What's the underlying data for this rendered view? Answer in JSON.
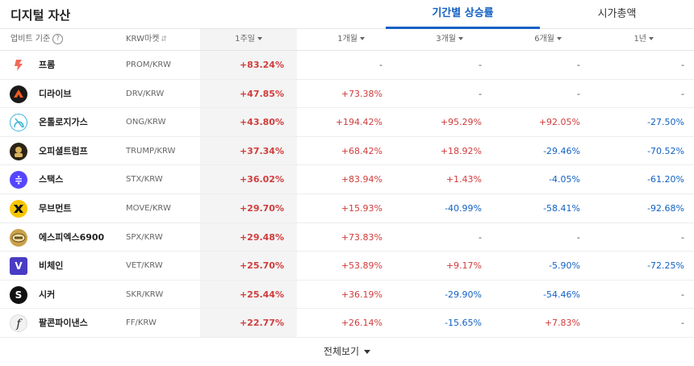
{
  "header": {
    "title": "디지털 자산",
    "tabs": [
      {
        "label": "기간별 상승률",
        "active": true
      },
      {
        "label": "시가총액",
        "active": false
      }
    ]
  },
  "columns": {
    "basis": "업비트 기준",
    "market": "KRW마켓",
    "week1": "1주일",
    "month1": "1개월",
    "month3": "3개월",
    "month6": "6개월",
    "year1": "1년"
  },
  "rows": [
    {
      "name": "프롬",
      "market": "PROM/KRW",
      "icon": "prom-icon",
      "w1": "+83.24%",
      "m1": "-",
      "m3": "-",
      "m6": "-",
      "y1": "-"
    },
    {
      "name": "디라이브",
      "market": "DRV/KRW",
      "icon": "drv-icon",
      "w1": "+47.85%",
      "m1": "+73.38%",
      "m3": "-",
      "m6": "-",
      "y1": "-"
    },
    {
      "name": "온톨로지가스",
      "market": "ONG/KRW",
      "icon": "ong-icon",
      "w1": "+43.80%",
      "m1": "+194.42%",
      "m3": "+95.29%",
      "m6": "+92.05%",
      "y1": "-27.50%"
    },
    {
      "name": "오피셜트럼프",
      "market": "TRUMP/KRW",
      "icon": "trump-icon",
      "w1": "+37.34%",
      "m1": "+68.42%",
      "m3": "+18.92%",
      "m6": "-29.46%",
      "y1": "-70.52%"
    },
    {
      "name": "스택스",
      "market": "STX/KRW",
      "icon": "stx-icon",
      "w1": "+36.02%",
      "m1": "+83.94%",
      "m3": "+1.43%",
      "m6": "-4.05%",
      "y1": "-61.20%"
    },
    {
      "name": "무브먼트",
      "market": "MOVE/KRW",
      "icon": "move-icon",
      "w1": "+29.70%",
      "m1": "+15.93%",
      "m3": "-40.99%",
      "m6": "-58.41%",
      "y1": "-92.68%"
    },
    {
      "name": "에스피엑스6900",
      "market": "SPX/KRW",
      "icon": "spx-icon",
      "w1": "+29.48%",
      "m1": "+73.83%",
      "m3": "-",
      "m6": "-",
      "y1": "-"
    },
    {
      "name": "비체인",
      "market": "VET/KRW",
      "icon": "vet-icon",
      "w1": "+25.70%",
      "m1": "+53.89%",
      "m3": "+9.17%",
      "m6": "-5.90%",
      "y1": "-72.25%"
    },
    {
      "name": "시커",
      "market": "SKR/KRW",
      "icon": "skr-icon",
      "w1": "+25.44%",
      "m1": "+36.19%",
      "m3": "-29.90%",
      "m6": "-54.46%",
      "y1": "-"
    },
    {
      "name": "팔콘파이낸스",
      "market": "FF/KRW",
      "icon": "ff-icon",
      "w1": "+22.77%",
      "m1": "+26.14%",
      "m3": "-15.65%",
      "m6": "+7.83%",
      "y1": "-"
    }
  ],
  "footer": {
    "view_all": "전체보기"
  },
  "colors": {
    "up": "#d13c3c",
    "down": "#1261c4",
    "accent": "#1261c4"
  }
}
